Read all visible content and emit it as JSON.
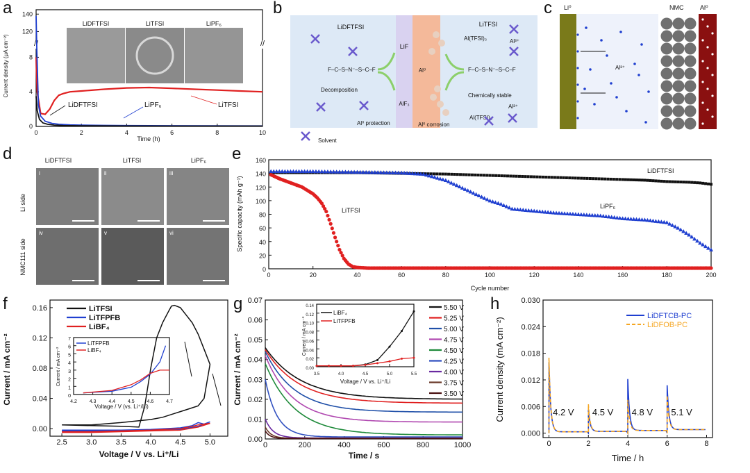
{
  "panel_labels": {
    "a": "a",
    "b": "b",
    "c": "c",
    "d": "d",
    "e": "e",
    "f": "f",
    "g": "g",
    "h": "h"
  },
  "colors": {
    "red": "#e02020",
    "blue": "#1f3fd0",
    "black": "#111111",
    "navy": "#1f3fd0",
    "orange": "#f5a623",
    "olive": "#7a7a1a",
    "maroon": "#8a1010"
  },
  "panel_a": {
    "ylabel": "Current density (μA cm⁻²)",
    "xlabel": "Time (h)",
    "images": [
      "LiDFTFSI",
      "LiTFSI",
      "LiPF₆"
    ],
    "annotations": [
      "LiDFTFSI",
      "LiPF₆",
      "LiTFSI"
    ]
  },
  "panel_b": {
    "left_title": "LiDFTFSI",
    "right_title": "LiTFSI",
    "lif": "LiF",
    "alf3": "AlF₃",
    "al0": "Al⁰",
    "al_tfsi_top": "Al(TFSI)₃",
    "al3_top": "Al³⁺",
    "al_tfsi_bot": "Al(TFSI)₃",
    "al3_bot": "Al³⁺",
    "decomposition": "Decomposition",
    "chem_stable": "Chemically stable",
    "protection": "Al⁰ protection",
    "corrosion": "Al⁰ corrosion",
    "solvent": "Solvent",
    "formula_left": "F–C–S–N⁻–S–C–F",
    "formula_right": "F–C–S–N⁻–S–C–F"
  },
  "panel_c": {
    "li": "Li⁰",
    "nmc": "NMC",
    "al": "Al⁰",
    "al3": "Al³⁺"
  },
  "panel_d": {
    "cols": [
      "LiDFTFSI",
      "LiTFSI",
      "LiPF₆"
    ],
    "rows": [
      "Li side",
      "NMC111 side"
    ],
    "tiles": [
      "i",
      "ii",
      "iii",
      "iv",
      "v",
      "vi"
    ]
  },
  "panel_f": {
    "xlabel": "Voltage / V vs. Li⁺/Li",
    "ylabel": "Current / mA cm⁻²",
    "inset_xlabel": "Voltage / V (vs. Li⁺/Li)",
    "inset_ylabel": "Current / mA cm⁻²"
  },
  "panel_g": {
    "xlabel": "Time / s",
    "ylabel": "Current / mA cm⁻²",
    "inset_xlabel": "Voltage / V vs. Li⁺/Li",
    "inset_ylabel": "Current / mA cm⁻²"
  },
  "panel_h": {
    "xlabel": "Time / h",
    "ylabel": "Current density (mA cm⁻²)"
  },
  "chart_data": [
    {
      "id": "a",
      "type": "line",
      "xlabel": "Time (h)",
      "ylabel": "Current density (μA cm⁻²)",
      "xlim": [
        0,
        10
      ],
      "ylim_lower": [
        0,
        9
      ],
      "ylim_upper": [
        110,
        145
      ],
      "xticks": [
        0,
        2,
        4,
        6,
        8,
        10
      ],
      "yticks_lower": [
        0,
        4,
        8
      ],
      "yticks_upper": [
        120,
        140
      ],
      "series": [
        {
          "name": "LiTFSI",
          "color": "#e02020",
          "x": [
            0,
            0.05,
            0.2,
            0.4,
            0.6,
            0.8,
            1.0,
            1.2,
            1.5,
            2,
            3,
            4,
            5,
            6,
            7,
            8,
            9,
            10
          ],
          "y": [
            8,
            4,
            1.5,
            1.4,
            2.0,
            3.0,
            3.6,
            3.8,
            4.0,
            4.1,
            4.3,
            4.45,
            4.5,
            4.4,
            4.3,
            4.2,
            4.1,
            4.0
          ]
        },
        {
          "name": "LiPF₆",
          "color": "#1f3fd0",
          "x": [
            0,
            0.03,
            0.1,
            0.2,
            0.4,
            0.7,
            1,
            1.5,
            2,
            3,
            4,
            6,
            8,
            10
          ],
          "y": [
            138,
            9,
            2.5,
            1.2,
            0.6,
            0.35,
            0.25,
            0.18,
            0.15,
            0.12,
            0.1,
            0.08,
            0.07,
            0.06
          ]
        },
        {
          "name": "LiDFTFSI",
          "color": "#111111",
          "x": [
            0,
            0.05,
            0.15,
            0.3,
            0.5,
            0.8,
            1.2,
            2,
            4,
            6,
            8,
            10
          ],
          "y": [
            3.5,
            1.8,
            0.8,
            0.4,
            0.25,
            0.15,
            0.1,
            0.07,
            0.05,
            0.04,
            0.04,
            0.04
          ]
        }
      ]
    },
    {
      "id": "e",
      "type": "scatter",
      "xlabel": "Cycle number",
      "ylabel": "Specific capacity (mAh g⁻¹)",
      "xlim": [
        0,
        200
      ],
      "ylim": [
        0,
        160
      ],
      "xticks": [
        0,
        20,
        40,
        60,
        80,
        100,
        120,
        140,
        160,
        180,
        200
      ],
      "yticks": [
        0,
        20,
        40,
        60,
        80,
        100,
        120,
        140,
        160
      ],
      "series": [
        {
          "name": "LiDFTFSI",
          "color": "#111111",
          "marker": "square",
          "x": [
            1,
            20,
            40,
            60,
            80,
            100,
            120,
            140,
            160,
            170,
            180,
            190,
            195,
            200
          ],
          "y": [
            141,
            141,
            141,
            140,
            139,
            137,
            135,
            133,
            131,
            130,
            128,
            127,
            126,
            124
          ]
        },
        {
          "name": "LiPF₆",
          "color": "#1f3fd0",
          "marker": "triangle",
          "x": [
            1,
            20,
            40,
            60,
            70,
            80,
            90,
            100,
            105,
            110,
            120,
            130,
            140,
            150,
            160,
            170,
            180,
            185,
            190,
            195,
            200
          ],
          "y": [
            143,
            143,
            142,
            141,
            139,
            130,
            115,
            100,
            95,
            88,
            85,
            82,
            80,
            78,
            74,
            72,
            68,
            60,
            50,
            38,
            28
          ]
        },
        {
          "name": "LiTFSI",
          "color": "#e02020",
          "marker": "circle",
          "x": [
            1,
            5,
            10,
            15,
            18,
            20,
            22,
            24,
            26,
            28,
            30,
            32,
            34,
            36,
            38,
            40,
            45,
            50,
            60,
            80,
            100,
            120,
            140,
            160,
            180,
            200
          ],
          "y": [
            138,
            132,
            126,
            120,
            114,
            110,
            104,
            96,
            84,
            66,
            46,
            28,
            15,
            7,
            3,
            2,
            1,
            1,
            1,
            1,
            1,
            1,
            1,
            1,
            1,
            1
          ]
        }
      ],
      "annotations": [
        "LiDFTFSI",
        "LiPF₆",
        "LiTFSI"
      ]
    },
    {
      "id": "f",
      "type": "line",
      "xlabel": "Voltage / V vs. Li⁺/Li",
      "ylabel": "Current / mA cm⁻²",
      "xlim": [
        2.3,
        5.3
      ],
      "ylim": [
        -0.01,
        0.17
      ],
      "xticks": [
        2.5,
        3.0,
        3.5,
        4.0,
        4.5,
        5.0
      ],
      "yticks": [
        0.0,
        0.04,
        0.08,
        0.12,
        0.16
      ],
      "series": [
        {
          "name": "LiTFSI",
          "color": "#111111",
          "x": [
            2.5,
            3.0,
            3.5,
            3.8,
            3.9,
            4.0,
            4.1,
            4.2,
            4.3,
            4.35,
            4.4,
            4.5,
            4.6,
            4.7,
            4.8,
            4.9,
            5.0,
            4.9,
            4.8,
            4.6,
            4.4,
            4.2,
            4.0,
            3.5,
            3.0,
            2.5
          ],
          "y": [
            0.005,
            0.004,
            0.003,
            0.002,
            0.03,
            0.08,
            0.12,
            0.14,
            0.155,
            0.162,
            0.163,
            0.16,
            0.15,
            0.14,
            0.125,
            0.105,
            0.085,
            0.04,
            0.03,
            0.025,
            0.02,
            0.015,
            0.012,
            0.008,
            0.005,
            0.005
          ]
        },
        {
          "name": "LiTFPFB",
          "color": "#1f3fd0",
          "x": [
            2.5,
            3.0,
            3.5,
            4.0,
            4.5,
            4.7,
            4.8,
            4.9,
            5.0,
            4.8,
            4.5,
            4.0,
            3.5,
            3.0,
            2.5
          ],
          "y": [
            -0.002,
            -0.002,
            -0.002,
            -0.001,
            0.001,
            0.004,
            0.008,
            0.006,
            0.009,
            0.003,
            -0.001,
            -0.002,
            -0.003,
            -0.003,
            -0.003
          ]
        },
        {
          "name": "LiBF₄",
          "color": "#e02020",
          "x": [
            2.5,
            3.0,
            3.5,
            4.0,
            4.5,
            4.7,
            4.8,
            4.9,
            5.0,
            4.8,
            4.5,
            4.0,
            3.5,
            3.0,
            2.5
          ],
          "y": [
            -0.004,
            -0.004,
            -0.003,
            -0.002,
            0.0,
            0.003,
            0.005,
            0.006,
            0.007,
            0.002,
            -0.002,
            -0.003,
            -0.004,
            -0.005,
            -0.005
          ]
        }
      ],
      "inset": {
        "xlim": [
          4.2,
          4.7
        ],
        "ylim": [
          0,
          7
        ],
        "xticks": [
          4.2,
          4.3,
          4.4,
          4.5,
          4.6,
          4.7
        ],
        "yticks": [
          0,
          1,
          2,
          3,
          4,
          5,
          6,
          7
        ],
        "series": [
          {
            "name": "LiTFPFB",
            "color": "#1f3fd0",
            "x": [
              4.25,
              4.4,
              4.5,
              4.55,
              4.6,
              4.65,
              4.68
            ],
            "y": [
              0.2,
              0.4,
              0.9,
              1.6,
              2.5,
              4.0,
              6.0
            ]
          },
          {
            "name": "LiBF₄",
            "color": "#e02020",
            "x": [
              4.25,
              4.4,
              4.5,
              4.55,
              4.6,
              4.65,
              4.7
            ],
            "y": [
              0.2,
              0.5,
              1.2,
              1.8,
              2.6,
              3.0,
              3.0
            ]
          }
        ]
      }
    },
    {
      "id": "g",
      "type": "line",
      "xlabel": "Time / s",
      "ylabel": "Current / mA cm⁻²",
      "xlim": [
        0,
        1000
      ],
      "ylim": [
        0,
        0.07
      ],
      "xticks": [
        0,
        200,
        400,
        600,
        800,
        1000
      ],
      "yticks": [
        0.0,
        0.01,
        0.02,
        0.03,
        0.04,
        0.05,
        0.06,
        0.07
      ],
      "series": [
        {
          "name": "5.50 V",
          "color": "#111111",
          "start": 0.046,
          "end": 0.02,
          "k": 180
        },
        {
          "name": "5.25 V",
          "color": "#e02020",
          "start": 0.045,
          "end": 0.018,
          "k": 170
        },
        {
          "name": "5.00 V",
          "color": "#1f4fa8",
          "start": 0.044,
          "end": 0.0135,
          "k": 150
        },
        {
          "name": "4.75 V",
          "color": "#b048b0",
          "start": 0.042,
          "end": 0.0085,
          "k": 140
        },
        {
          "name": "4.50 V",
          "color": "#1e8a3a",
          "start": 0.038,
          "end": 0.002,
          "k": 150
        },
        {
          "name": "4.25 V",
          "color": "#3050c0",
          "start": 0.03,
          "end": 0.001,
          "k": 60
        },
        {
          "name": "4.00 V",
          "color": "#6a2aa0",
          "start": 0.01,
          "end": 0.0005,
          "k": 40
        },
        {
          "name": "3.75 V",
          "color": "#6b3a2a",
          "start": 0.006,
          "end": 0.0003,
          "k": 30
        },
        {
          "name": "3.50 V",
          "color": "#4a1010",
          "start": 0.004,
          "end": 0.0002,
          "k": 25
        }
      ],
      "inset": {
        "xlim": [
          3.5,
          5.5
        ],
        "ylim": [
          0,
          0.14
        ],
        "xticks": [
          3.5,
          4.0,
          4.5,
          5.0,
          5.5
        ],
        "yticks": [
          0.0,
          0.02,
          0.04,
          0.06,
          0.08,
          0.1,
          0.12,
          0.14
        ],
        "series": [
          {
            "name": "LiBF₄",
            "color": "#111111",
            "x": [
              3.5,
              3.75,
              4.0,
              4.25,
              4.5,
              4.75,
              5.0,
              5.25,
              5.5
            ],
            "y": [
              0.002,
              0.002,
              0.002,
              0.002,
              0.005,
              0.015,
              0.045,
              0.08,
              0.124
            ]
          },
          {
            "name": "LiTFPFB",
            "color": "#e02020",
            "x": [
              3.5,
              3.75,
              4.0,
              4.25,
              4.5,
              4.75,
              5.0,
              5.25,
              5.5
            ],
            "y": [
              0.002,
              0.002,
              0.002,
              0.002,
              0.004,
              0.008,
              0.012,
              0.018,
              0.02
            ]
          }
        ]
      }
    },
    {
      "id": "h",
      "type": "line",
      "xlabel": "Time / h",
      "ylabel": "Current density (mA cm⁻²)",
      "xlim": [
        -0.3,
        8.3
      ],
      "ylim": [
        -0.001,
        0.03
      ],
      "xticks": [
        0,
        2,
        4,
        6,
        8
      ],
      "yticks": [
        0.0,
        0.006,
        0.012,
        0.018,
        0.024,
        0.03
      ],
      "steps": [
        {
          "label": "4.2 V",
          "t0": 0,
          "peak_blue": 0.016,
          "peak_orange": 0.017,
          "tail": 0.0003
        },
        {
          "label": "4.5 V",
          "t0": 2,
          "peak_blue": 0.0055,
          "peak_orange": 0.0065,
          "tail": 0.0004
        },
        {
          "label": "4.8 V",
          "t0": 4,
          "peak_blue": 0.0122,
          "peak_orange": 0.0075,
          "tail": 0.0006
        },
        {
          "label": "5.1 V",
          "t0": 6,
          "peak_blue": 0.0108,
          "peak_orange": 0.0085,
          "tail": 0.0008
        }
      ],
      "series": [
        {
          "name": "LiDFTCB-PC",
          "color": "#1f3fd0",
          "dash": false
        },
        {
          "name": "LiDFOB-PC",
          "color": "#f5a623",
          "dash": true
        }
      ]
    }
  ]
}
